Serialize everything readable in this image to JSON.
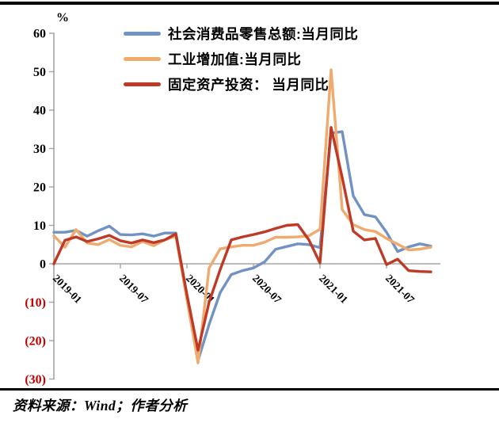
{
  "header": {
    "unit_label": "%"
  },
  "legend": [
    {
      "label": "社会消费品零售总额:当月同比",
      "color": "#7292C4"
    },
    {
      "label": "工业增加值:当月同比",
      "color": "#EFAA6D"
    },
    {
      "label": "固定资产投资： 当月同比",
      "color": "#BE3926"
    }
  ],
  "footer": {
    "source": "资料来源：Wind；作者分析"
  },
  "chart_data": {
    "type": "line",
    "ylabel": "%",
    "ylim": [
      -30,
      60
    ],
    "y_ticks": [
      60,
      50,
      40,
      30,
      20,
      10,
      0,
      -10,
      -20,
      -30
    ],
    "negative_tick_style": {
      "format": "parentheses",
      "color": "#C00000"
    },
    "grid": false,
    "legend_position": "top-left-inside",
    "axis_color": "#A5A5A5",
    "x": [
      "2019-01",
      "2019-02",
      "2019-03",
      "2019-04",
      "2019-05",
      "2019-06",
      "2019-07",
      "2019-08",
      "2019-09",
      "2019-10",
      "2019-11",
      "2019-12",
      "2020-01",
      "2020-02",
      "2020-03",
      "2020-04",
      "2020-05",
      "2020-06",
      "2020-07",
      "2020-08",
      "2020-09",
      "2020-10",
      "2020-11",
      "2020-12",
      "2021-01",
      "2021-02",
      "2021-03",
      "2021-04",
      "2021-05",
      "2021-06",
      "2021-07",
      "2021-08",
      "2021-09",
      "2021-10",
      "2021-11"
    ],
    "x_tick_labels": [
      "2019-01",
      "2019-07",
      "2020-01",
      "2020-07",
      "2021-01",
      "2021-07"
    ],
    "x_tick_month_index": [
      0,
      6,
      12,
      18,
      24,
      30
    ],
    "series": [
      {
        "name": "社会消费品零售总额:当月同比",
        "color": "#7292C4",
        "values": [
          8.2,
          8.2,
          8.7,
          7.2,
          8.6,
          9.8,
          7.6,
          7.5,
          7.8,
          7.2,
          8.0,
          8.0,
          -8.5,
          -25.2,
          -15.8,
          -7.5,
          -2.8,
          -1.8,
          -1.1,
          0.5,
          3.8,
          4.5,
          5.2,
          5.0,
          4.2,
          34.0,
          34.4,
          17.7,
          12.8,
          12.2,
          8.2,
          3.2,
          4.4,
          5.2,
          4.6
        ]
      },
      {
        "name": "工业增加值:当月同比",
        "color": "#EFAA6D",
        "values": [
          7.3,
          4.3,
          8.9,
          5.4,
          5.0,
          6.3,
          4.8,
          4.4,
          5.8,
          4.7,
          6.2,
          7.2,
          -9.3,
          -25.8,
          -1.1,
          3.9,
          4.4,
          4.8,
          4.8,
          5.6,
          6.9,
          6.9,
          7.0,
          7.3,
          9.0,
          50.5,
          14.1,
          10.2,
          8.9,
          8.4,
          6.6,
          5.1,
          3.6,
          3.8,
          4.3
        ]
      },
      {
        "name": "固定资产投资： 当月同比",
        "color": "#BE3926",
        "values": [
          0.0,
          6.1,
          7.0,
          5.8,
          6.5,
          7.4,
          6.0,
          5.4,
          6.2,
          5.5,
          6.2,
          7.8,
          -8.0,
          -22.5,
          -10.0,
          -1.5,
          6.2,
          7.0,
          7.6,
          8.3,
          9.2,
          10.0,
          10.2,
          6.2,
          0.2,
          35.5,
          22.5,
          8.5,
          6.2,
          6.6,
          -0.2,
          1.2,
          -1.8,
          -2.0,
          -2.1
        ]
      }
    ]
  }
}
